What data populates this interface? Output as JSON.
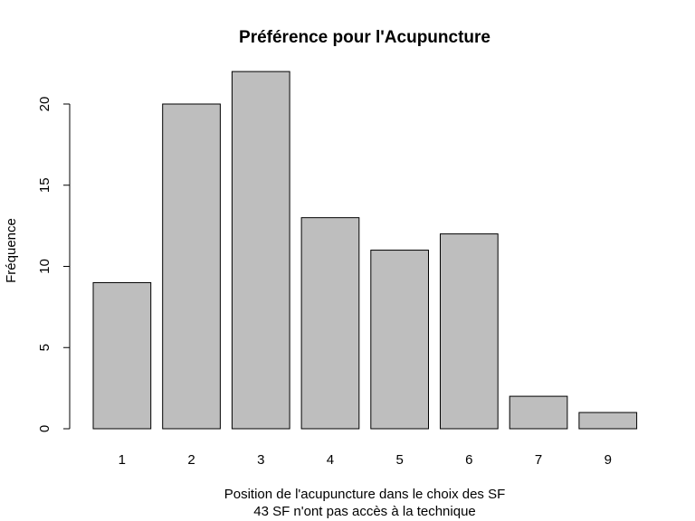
{
  "chart_data": {
    "type": "bar",
    "title": "Préférence pour l'Acupuncture",
    "xlabel": "Position de l'acupuncture dans le choix des SF",
    "xlabel2": "43 SF n'ont pas accès à la technique",
    "ylabel": "Fréquence",
    "categories": [
      "1",
      "2",
      "3",
      "4",
      "5",
      "6",
      "7",
      "9"
    ],
    "values": [
      9,
      20,
      22,
      13,
      11,
      12,
      2,
      1
    ],
    "ylim": [
      0,
      22
    ],
    "yticks": [
      0,
      5,
      10,
      15,
      20
    ],
    "bar_color": "#bebebe",
    "grid": false
  }
}
